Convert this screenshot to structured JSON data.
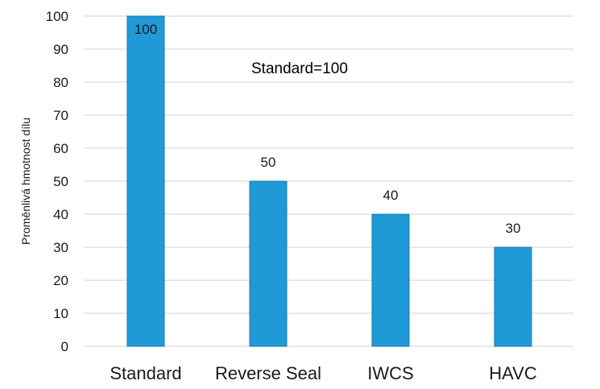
{
  "chart_data": {
    "type": "bar",
    "categories": [
      "Standard",
      "Reverse Seal",
      "IWCS",
      "HAVC"
    ],
    "values": [
      100,
      50,
      40,
      30
    ],
    "data_labels": [
      "100",
      "50",
      "40",
      "30"
    ],
    "title": "",
    "xlabel": "",
    "ylabel": "Proměnlivá hmotnost dílu",
    "ylim": [
      0,
      100
    ],
    "yticks": [
      0,
      10,
      20,
      30,
      40,
      50,
      60,
      70,
      80,
      90,
      100
    ],
    "annotation": "Standard=100",
    "grid": true,
    "legend": "none",
    "colors": {
      "bar_fill": "#1f9ad6",
      "bar_stroke": "#1678ad",
      "grid": "#d0d0d0",
      "text": "#1a1a1a"
    }
  }
}
